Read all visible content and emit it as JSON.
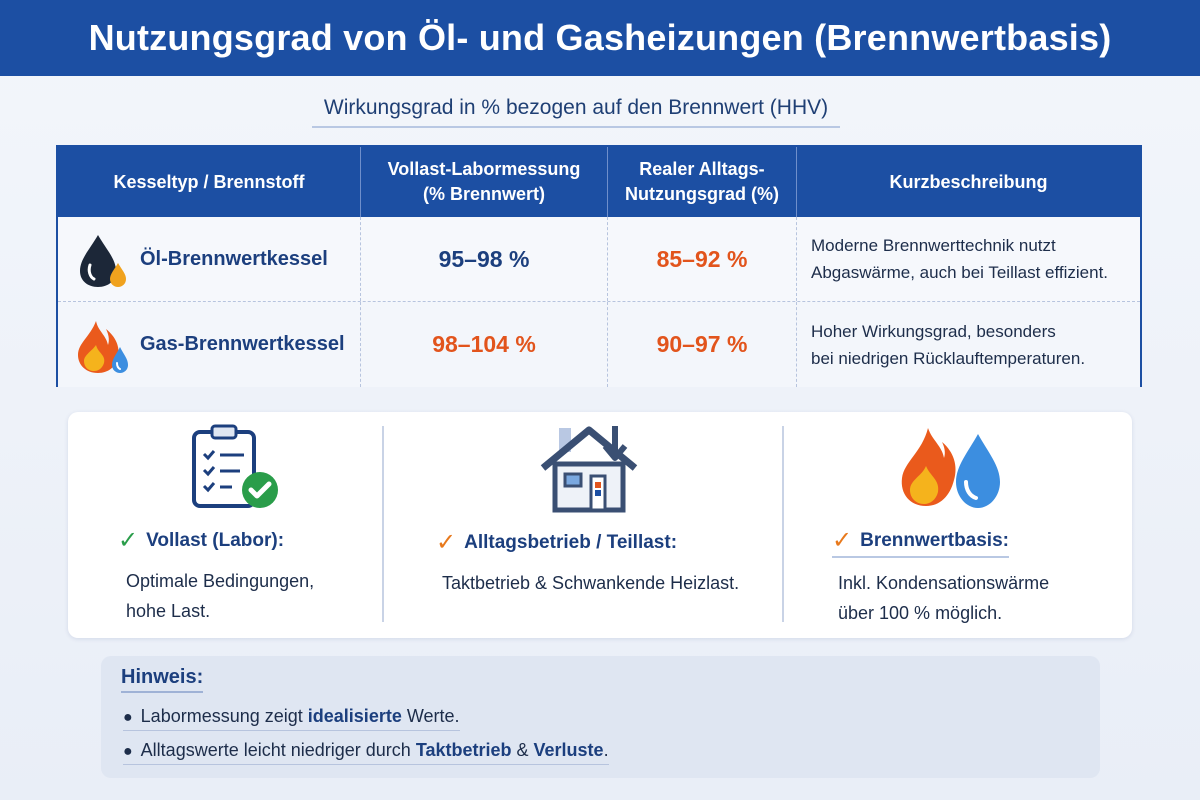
{
  "header": {
    "title": "Nutzungsgrad von Öl- und Gasheizungen (Brennwertbasis)"
  },
  "subtitle": "Wirkungsgrad in % bezogen auf den Brennwert (HHV)",
  "table": {
    "columns": [
      {
        "line1": "Kesseltyp / Brennstoff",
        "line2": ""
      },
      {
        "line1": "Vollast-Labormessung",
        "line2": "(% Brennwert)"
      },
      {
        "line1": "Realer Alltags-",
        "line2": "Nutzungsgrad (%)"
      },
      {
        "line1": "Kurzbeschreibung",
        "line2": ""
      }
    ],
    "rows": [
      {
        "name": "Öl-Brennwertkessel",
        "icon": "oil-drop-icon",
        "lab": "95–98 %",
        "real": "85–92 %",
        "desc_line1": "Moderne Brennwerttechnik nutzt",
        "desc_line2": "Abgaswärme, auch bei Teillast effizient."
      },
      {
        "name": "Gas-Brennwertkessel",
        "icon": "gas-flame-icon",
        "lab": "98–104 %",
        "real": "90–97 %",
        "desc_line1": "Hoher Wirkungsgrad, besonders",
        "desc_line2": "bei niedrigen Rücklauftemperaturen."
      }
    ]
  },
  "cards": [
    {
      "icon": "clipboard-check-icon",
      "title": "Vollast (Labor):",
      "line1": "Optimale Bedingungen,",
      "line2": "hohe Last."
    },
    {
      "icon": "house-icon",
      "title": "Alltagsbetrieb / Teillast:",
      "line1": "Taktbetrieb & Schwankende Heizlast.",
      "line2": ""
    },
    {
      "icon": "flame-water-icon",
      "title": "Brennwertbasis:",
      "line1": "Inkl. Kondensationswärme",
      "line2": "über 100 % möglich."
    }
  ],
  "note": {
    "title": "Hinweis:",
    "line1": {
      "pre": "Labormessung zeigt ",
      "bold": "idealisierte",
      "post": " Werte."
    },
    "line2": {
      "pre": "Alltagswerte leicht niedriger durch ",
      "bold1": "Taktbetrieb",
      "mid": " & ",
      "bold2": "Verluste",
      "post": "."
    }
  },
  "colors": {
    "primary": "#1c4fa3",
    "orange": "#e2541c",
    "green": "#2a9d4a"
  }
}
